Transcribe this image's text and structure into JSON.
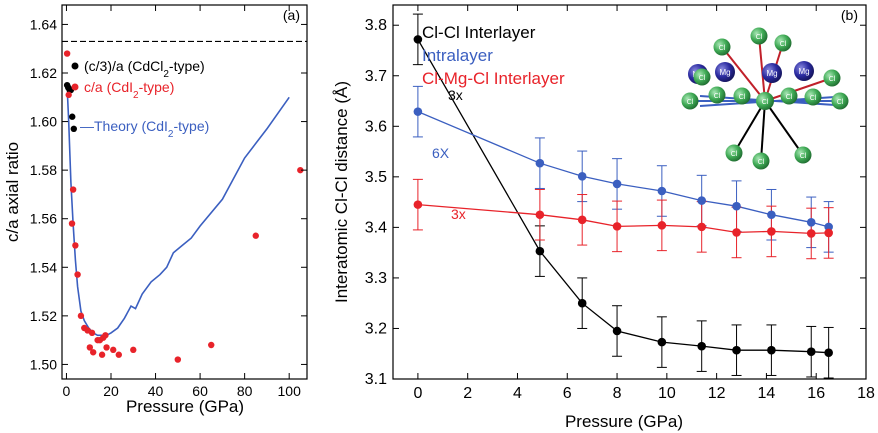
{
  "chart_data": [
    {
      "panel": "a",
      "panel_label": "(a)",
      "type": "scatter",
      "xlabel": "Pressure (GPa)",
      "ylabel": "c/a axial ratio",
      "xlim": [
        -2,
        108
      ],
      "ylim": [
        1.494,
        1.648
      ],
      "x_ticks": [
        0,
        20,
        40,
        60,
        80,
        100
      ],
      "y_ticks": [
        1.5,
        1.52,
        1.54,
        1.56,
        1.58,
        1.6,
        1.62,
        1.64
      ],
      "reference_line": {
        "y": 1.633,
        "style": "dashed",
        "color": "#000000"
      },
      "legend": [
        {
          "prefix": "(c/3)/a (CdCl",
          "sub": "2",
          "suffix": "-type)",
          "color": "#000000",
          "marker": "circle"
        },
        {
          "prefix": "c/a (CdI",
          "sub": "2",
          "suffix": "-type)",
          "color": "#e8232a",
          "marker": "circle"
        },
        {
          "prefix": "—Theory (CdI",
          "sub": "2",
          "suffix": "-type)",
          "color": "#3b5fc0",
          "marker": "line"
        }
      ],
      "series": [
        {
          "legend_index": 0,
          "type": "scatter",
          "color": "#000000",
          "points": [
            [
              0.3,
              1.615
            ],
            [
              0.8,
              1.614
            ],
            [
              1.4,
              1.613
            ],
            [
              2.0,
              1.613
            ],
            [
              2.6,
              1.602
            ],
            [
              3.3,
              1.597
            ]
          ]
        },
        {
          "legend_index": 1,
          "type": "scatter",
          "color": "#e8232a",
          "points": [
            [
              0.3,
              1.628
            ],
            [
              1.0,
              1.611
            ],
            [
              2.5,
              1.558
            ],
            [
              3.0,
              1.572
            ],
            [
              4.0,
              1.549
            ],
            [
              5.0,
              1.537
            ],
            [
              6.5,
              1.52
            ],
            [
              8.0,
              1.515
            ],
            [
              9.5,
              1.514
            ],
            [
              10.5,
              1.507
            ],
            [
              11.5,
              1.513
            ],
            [
              12.0,
              1.505
            ],
            [
              14.0,
              1.51
            ],
            [
              15.0,
              1.51
            ],
            [
              16.0,
              1.504
            ],
            [
              16.5,
              1.511
            ],
            [
              17.5,
              1.512
            ],
            [
              18.0,
              1.507
            ],
            [
              21.0,
              1.506
            ],
            [
              23.5,
              1.504
            ],
            [
              30.0,
              1.506
            ],
            [
              50.0,
              1.502
            ],
            [
              65.0,
              1.508
            ],
            [
              85.0,
              1.553
            ],
            [
              105.0,
              1.58
            ]
          ]
        },
        {
          "legend_index": 2,
          "type": "line",
          "color": "#3b5fc0",
          "points": [
            [
              0.5,
              1.61
            ],
            [
              1.0,
              1.6
            ],
            [
              2.0,
              1.575
            ],
            [
              3.0,
              1.558
            ],
            [
              4.0,
              1.543
            ],
            [
              5.0,
              1.532
            ],
            [
              6.5,
              1.522
            ],
            [
              8.0,
              1.518
            ],
            [
              10.0,
              1.515
            ],
            [
              12.0,
              1.513
            ],
            [
              14.0,
              1.512
            ],
            [
              16.0,
              1.512
            ],
            [
              18.0,
              1.512
            ],
            [
              20.0,
              1.513
            ],
            [
              23.0,
              1.515
            ],
            [
              26.0,
              1.519
            ],
            [
              29.0,
              1.524
            ],
            [
              31.0,
              1.523
            ],
            [
              34.0,
              1.529
            ],
            [
              38.0,
              1.534
            ],
            [
              42.0,
              1.537
            ],
            [
              45.0,
              1.54
            ],
            [
              48.0,
              1.546
            ],
            [
              52.0,
              1.549
            ],
            [
              56.0,
              1.552
            ],
            [
              60.0,
              1.557
            ],
            [
              70.0,
              1.568
            ],
            [
              80.0,
              1.585
            ],
            [
              90.0,
              1.597
            ],
            [
              100.0,
              1.61
            ]
          ]
        }
      ]
    },
    {
      "panel": "b",
      "panel_label": "(b)",
      "type": "line",
      "xlabel": "Pressure (GPa)",
      "ylabel": "Interatomic Cl-Cl distance (Å)",
      "xlim": [
        -1,
        18
      ],
      "ylim": [
        3.1,
        3.84
      ],
      "x_ticks": [
        0,
        2,
        4,
        6,
        8,
        10,
        12,
        14,
        16,
        18
      ],
      "y_ticks": [
        3.1,
        3.2,
        3.3,
        3.4,
        3.5,
        3.6,
        3.7,
        3.8
      ],
      "x": [
        0,
        4.9,
        6.6,
        8.0,
        9.8,
        11.4,
        12.8,
        14.2,
        15.8,
        16.5
      ],
      "series": [
        {
          "name": "Cl-Cl Interlayer",
          "color": "#000000",
          "multiplicity": "3x",
          "values": [
            3.772,
            3.353,
            3.25,
            3.195,
            3.173,
            3.165,
            3.157,
            3.157,
            3.154,
            3.152
          ],
          "error": [
            0.05,
            0.05,
            0.05,
            0.05,
            0.05,
            0.05,
            0.05,
            0.05,
            0.05,
            0.05
          ]
        },
        {
          "name": "Intralayer",
          "color": "#3b5fc0",
          "multiplicity": "6X",
          "values": [
            3.629,
            3.527,
            3.501,
            3.486,
            3.472,
            3.453,
            3.442,
            3.425,
            3.41,
            3.401
          ],
          "error": [
            0.05,
            0.05,
            0.05,
            0.05,
            0.05,
            0.05,
            0.05,
            0.05,
            0.05,
            0.05
          ]
        },
        {
          "name": "Cl-Mg-Cl Interlayer",
          "color": "#e8232a",
          "multiplicity": "3x",
          "values": [
            3.445,
            3.425,
            3.415,
            3.402,
            3.404,
            3.401,
            3.39,
            3.392,
            3.388,
            3.389
          ],
          "error": [
            0.05,
            0.05,
            0.05,
            0.05,
            0.05,
            0.05,
            0.05,
            0.05,
            0.05,
            0.05
          ]
        }
      ],
      "inset": {
        "atoms": [
          {
            "label": "Cl",
            "color": "#3faa55"
          },
          {
            "label": "Mg",
            "color": "#2b2ba0"
          }
        ]
      }
    }
  ]
}
